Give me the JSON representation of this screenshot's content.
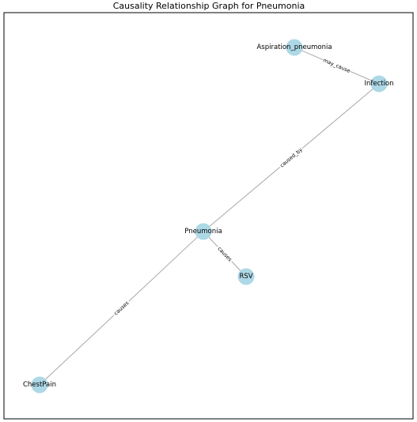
{
  "title": "Causality Relationship Graph for Pneumonia",
  "colors": {
    "node_fill": "#add8e6",
    "edge_stroke": "#a8a8a8",
    "frame": "#000000",
    "label_bg": "#ffffff"
  },
  "nodes": [
    {
      "id": "aspiration",
      "label": "Aspiration_pneumonia"
    },
    {
      "id": "infection",
      "label": "Infection"
    },
    {
      "id": "pneumonia",
      "label": "Pneumonia"
    },
    {
      "id": "rsv",
      "label": "RSV"
    },
    {
      "id": "chestpain",
      "label": "ChestPain"
    }
  ],
  "edges": [
    {
      "source": "aspiration",
      "target": "infection",
      "label": "may_cause"
    },
    {
      "source": "infection",
      "target": "pneumonia",
      "label": "caused_by"
    },
    {
      "source": "pneumonia",
      "target": "rsv",
      "label": "causes"
    },
    {
      "source": "pneumonia",
      "target": "chestpain",
      "label": "causes"
    }
  ]
}
